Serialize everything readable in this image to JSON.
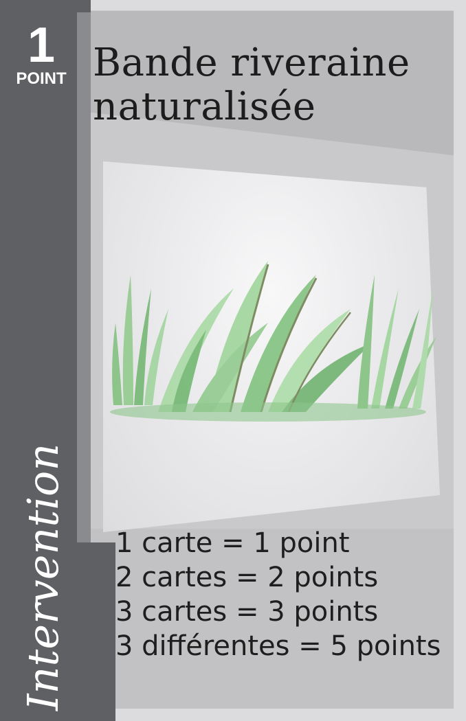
{
  "card": {
    "points_value": "1",
    "points_label": "POINT",
    "title_line1": "Bande riveraine",
    "title_line2": "naturalisée",
    "category": "Intervention",
    "illustration_icon": "riparian-vegetation-illustration",
    "rules": [
      "1 carte = 1 point",
      "2 cartes = 2 points",
      "3 cartes = 3 points",
      "3 différentes = 5 points"
    ]
  },
  "colors": {
    "left_band": "#5f6064",
    "panel": "#c9c9cb",
    "grass_light": "#8fc98a",
    "grass_dark": "#4e9a52"
  }
}
